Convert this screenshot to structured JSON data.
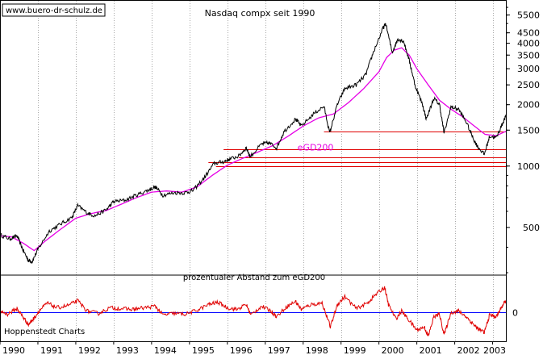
{
  "watermark": "www.buero-dr-schulz.de",
  "credit": "Hoppenstedt Charts",
  "chart_data": [
    {
      "type": "line",
      "title": "Nasdaq compx seit 1990",
      "yscale": "log",
      "ylim": [
        300,
        6400
      ],
      "xlim": [
        1990.0,
        2003.35
      ],
      "grid": true,
      "y_ticks": [
        500,
        1000,
        1500,
        2000,
        2500,
        3000,
        3500,
        4000,
        4500,
        5500
      ],
      "x_ticks": [
        "1990",
        "1991",
        "1992",
        "1993",
        "1994",
        "1995",
        "1996",
        "1997",
        "1998",
        "1999",
        "2000",
        "2001",
        "2002",
        "2003"
      ],
      "colors": {
        "index": "#000000",
        "ma": "#e600e6",
        "levels": "#e00000"
      },
      "series": [
        {
          "name": "Nasdaq compx",
          "color": "#000000",
          "points": [
            [
              1990.0,
              460
            ],
            [
              1990.25,
              440
            ],
            [
              1990.45,
              455
            ],
            [
              1990.6,
              390
            ],
            [
              1990.75,
              345
            ],
            [
              1990.85,
              340
            ],
            [
              1991.0,
              390
            ],
            [
              1991.3,
              480
            ],
            [
              1991.6,
              520
            ],
            [
              1991.9,
              560
            ],
            [
              1992.05,
              640
            ],
            [
              1992.3,
              590
            ],
            [
              1992.5,
              570
            ],
            [
              1992.8,
              610
            ],
            [
              1993.0,
              670
            ],
            [
              1993.3,
              680
            ],
            [
              1993.6,
              720
            ],
            [
              1993.9,
              760
            ],
            [
              1994.1,
              790
            ],
            [
              1994.3,
              720
            ],
            [
              1994.6,
              740
            ],
            [
              1994.9,
              740
            ],
            [
              1995.1,
              760
            ],
            [
              1995.4,
              880
            ],
            [
              1995.65,
              1030
            ],
            [
              1995.9,
              1050
            ],
            [
              1996.05,
              1080
            ],
            [
              1996.3,
              1120
            ],
            [
              1996.5,
              1230
            ],
            [
              1996.6,
              1110
            ],
            [
              1996.9,
              1280
            ],
            [
              1997.1,
              1300
            ],
            [
              1997.3,
              1230
            ],
            [
              1997.5,
              1480
            ],
            [
              1997.8,
              1700
            ],
            [
              1997.95,
              1570
            ],
            [
              1998.3,
              1820
            ],
            [
              1998.55,
              1960
            ],
            [
              1998.7,
              1450
            ],
            [
              1998.9,
              2000
            ],
            [
              1999.1,
              2400
            ],
            [
              1999.4,
              2500
            ],
            [
              1999.65,
              2800
            ],
            [
              1999.85,
              3600
            ],
            [
              2000.1,
              4700
            ],
            [
              2000.18,
              5000
            ],
            [
              2000.35,
              3600
            ],
            [
              2000.5,
              4200
            ],
            [
              2000.65,
              4100
            ],
            [
              2000.8,
              3300
            ],
            [
              2000.95,
              2500
            ],
            [
              2001.15,
              2000
            ],
            [
              2001.25,
              1700
            ],
            [
              2001.45,
              2150
            ],
            [
              2001.6,
              2000
            ],
            [
              2001.72,
              1450
            ],
            [
              2001.9,
              1950
            ],
            [
              2002.1,
              1900
            ],
            [
              2002.3,
              1650
            ],
            [
              2002.5,
              1350
            ],
            [
              2002.6,
              1250
            ],
            [
              2002.78,
              1140
            ],
            [
              2002.92,
              1400
            ],
            [
              2003.1,
              1380
            ],
            [
              2003.25,
              1600
            ],
            [
              2003.35,
              1760
            ]
          ]
        },
        {
          "name": "eGD200",
          "color": "#e600e6",
          "points": [
            [
              1990.0,
              455
            ],
            [
              1990.3,
              450
            ],
            [
              1990.6,
              420
            ],
            [
              1990.9,
              385
            ],
            [
              1991.2,
              430
            ],
            [
              1991.6,
              490
            ],
            [
              1992.0,
              555
            ],
            [
              1992.4,
              585
            ],
            [
              1992.8,
              605
            ],
            [
              1993.2,
              650
            ],
            [
              1993.6,
              700
            ],
            [
              1994.0,
              745
            ],
            [
              1994.4,
              755
            ],
            [
              1994.8,
              745
            ],
            [
              1995.2,
              790
            ],
            [
              1995.6,
              900
            ],
            [
              1996.0,
              1010
            ],
            [
              1996.4,
              1090
            ],
            [
              1996.8,
              1170
            ],
            [
              1997.2,
              1260
            ],
            [
              1997.6,
              1400
            ],
            [
              1998.0,
              1570
            ],
            [
              1998.4,
              1720
            ],
            [
              1998.8,
              1800
            ],
            [
              1999.2,
              2050
            ],
            [
              1999.6,
              2400
            ],
            [
              2000.0,
              2900
            ],
            [
              2000.2,
              3400
            ],
            [
              2000.4,
              3700
            ],
            [
              2000.6,
              3800
            ],
            [
              2000.8,
              3500
            ],
            [
              2001.0,
              3000
            ],
            [
              2001.3,
              2500
            ],
            [
              2001.6,
              2100
            ],
            [
              2001.9,
              1900
            ],
            [
              2002.2,
              1750
            ],
            [
              2002.5,
              1580
            ],
            [
              2002.8,
              1430
            ],
            [
              2003.1,
              1410
            ],
            [
              2003.35,
              1480
            ]
          ]
        }
      ],
      "annotations": [
        {
          "text": "eGD200",
          "x": 1997.85,
          "y": 1190
        }
      ],
      "horizontal_levels": [
        {
          "y": 1480,
          "from": 1998.55
        },
        {
          "y": 1210,
          "from": 1995.9
        },
        {
          "y": 1045,
          "from": 1995.5
        },
        {
          "y": 995,
          "from": 1995.7
        },
        {
          "y": 1105,
          "from": 1996.3
        }
      ]
    },
    {
      "type": "line",
      "title": "prozentualer Abstand zum eGD200",
      "ylim": [
        -35,
        45
      ],
      "xlim": [
        1990.0,
        2003.35
      ],
      "y_ticks": [
        0
      ],
      "y_tick_labels": [
        "0"
      ],
      "baseline": 0,
      "colors": {
        "line": "#e00000",
        "baseline": "#0000ff"
      },
      "series": [
        {
          "name": "Abstand",
          "color": "#e00000",
          "points": [
            [
              1990.0,
              2
            ],
            [
              1990.2,
              -2
            ],
            [
              1990.45,
              5
            ],
            [
              1990.6,
              -5
            ],
            [
              1990.75,
              -15
            ],
            [
              1990.88,
              -8
            ],
            [
              1991.05,
              3
            ],
            [
              1991.25,
              12
            ],
            [
              1991.5,
              6
            ],
            [
              1991.8,
              9
            ],
            [
              1992.05,
              15
            ],
            [
              1992.3,
              2
            ],
            [
              1992.6,
              -1
            ],
            [
              1992.9,
              6
            ],
            [
              1993.2,
              5
            ],
            [
              1993.5,
              4
            ],
            [
              1993.8,
              6
            ],
            [
              1994.1,
              8
            ],
            [
              1994.3,
              -3
            ],
            [
              1994.6,
              -1
            ],
            [
              1994.9,
              -2
            ],
            [
              1995.2,
              3
            ],
            [
              1995.5,
              10
            ],
            [
              1995.75,
              13
            ],
            [
              1996.0,
              6
            ],
            [
              1996.25,
              4
            ],
            [
              1996.5,
              10
            ],
            [
              1996.62,
              -3
            ],
            [
              1996.9,
              8
            ],
            [
              1997.15,
              2
            ],
            [
              1997.3,
              -5
            ],
            [
              1997.55,
              7
            ],
            [
              1997.8,
              14
            ],
            [
              1997.95,
              4
            ],
            [
              1998.2,
              10
            ],
            [
              1998.5,
              12
            ],
            [
              1998.72,
              -18
            ],
            [
              1998.9,
              10
            ],
            [
              1999.1,
              20
            ],
            [
              1999.4,
              5
            ],
            [
              1999.7,
              12
            ],
            [
              1999.9,
              22
            ],
            [
              2000.15,
              32
            ],
            [
              2000.25,
              10
            ],
            [
              2000.45,
              -8
            ],
            [
              2000.6,
              2
            ],
            [
              2000.8,
              -10
            ],
            [
              2001.0,
              -22
            ],
            [
              2001.2,
              -18
            ],
            [
              2001.3,
              -30
            ],
            [
              2001.45,
              -5
            ],
            [
              2001.6,
              -2
            ],
            [
              2001.72,
              -28
            ],
            [
              2001.9,
              0
            ],
            [
              2002.1,
              2
            ],
            [
              2002.3,
              -5
            ],
            [
              2002.5,
              -15
            ],
            [
              2002.6,
              -20
            ],
            [
              2002.78,
              -25
            ],
            [
              2002.92,
              -3
            ],
            [
              2003.1,
              -5
            ],
            [
              2003.25,
              8
            ],
            [
              2003.35,
              15
            ]
          ]
        }
      ]
    }
  ]
}
